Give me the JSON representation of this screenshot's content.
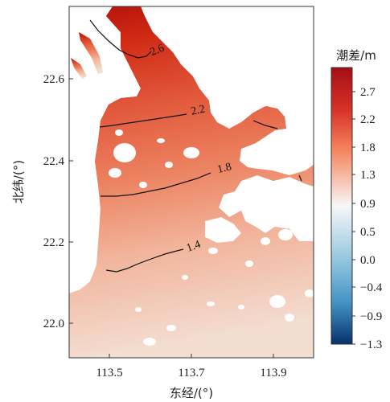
{
  "map": {
    "x_axis_title": "东经/(°)",
    "y_axis_title": "北纬/(°)",
    "x_ticks": [
      "113.5",
      "113.7",
      "113.9"
    ],
    "y_ticks": [
      "22.6",
      "22.4",
      "22.2",
      "22.0"
    ],
    "contour_labels": [
      "2.6",
      "2.2",
      "1.8",
      "1.4"
    ]
  },
  "colorbar": {
    "title": "潮差/m",
    "ticks": [
      "2.7",
      "2.2",
      "1.8",
      "1.3",
      "0.9",
      "0.5",
      "0.0",
      "−0.4",
      "−0.9",
      "−1.3"
    ],
    "colors": {
      "top": "#a50f15",
      "upper": "#e7604a",
      "mid": "#f7f7f7",
      "lower": "#6aaed6",
      "bottom": "#08306b"
    }
  },
  "field_colors": {
    "north": "#c8220f",
    "upper_mid": "#e05a3a",
    "mid": "#ef9070",
    "south": "#f3d8cb",
    "land": "#ffffff"
  }
}
